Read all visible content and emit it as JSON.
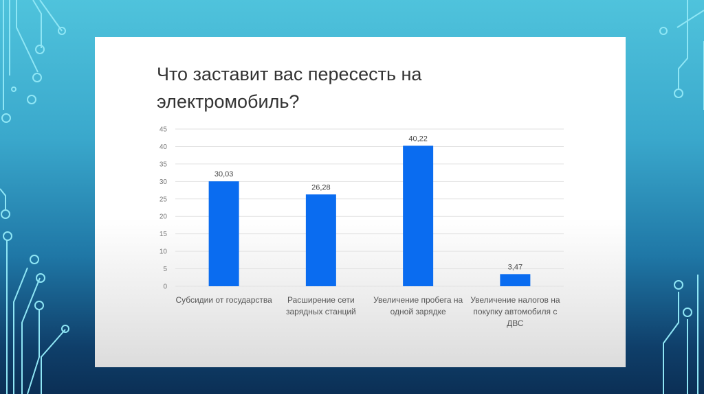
{
  "slide": {
    "title_line1": "Что заставит вас пересесть на",
    "title_line2": "электромобиль?"
  },
  "colors": {
    "bar": "#0a6cf0",
    "grid": "#e2e2e2",
    "text": "#555555"
  },
  "chart_data": {
    "type": "bar",
    "title": "Что заставит вас пересесть на электромобиль?",
    "categories": [
      [
        "Субсидии от государства"
      ],
      [
        "Расширение сети",
        "зарядных станций"
      ],
      [
        "Увеличение пробега на",
        "одной зарядке"
      ],
      [
        "Увеличение налогов на",
        "покупку автомобиля с",
        "ДВС"
      ]
    ],
    "values": [
      30.03,
      26.28,
      40.22,
      3.47
    ],
    "data_labels": [
      "30,03",
      "26,28",
      "40,22",
      "3,47"
    ],
    "yticks": [
      "0",
      "5",
      "10",
      "15",
      "20",
      "25",
      "30",
      "35",
      "40",
      "45"
    ],
    "ylim": [
      0,
      45
    ],
    "grid": true,
    "xlabel": "",
    "ylabel": ""
  }
}
